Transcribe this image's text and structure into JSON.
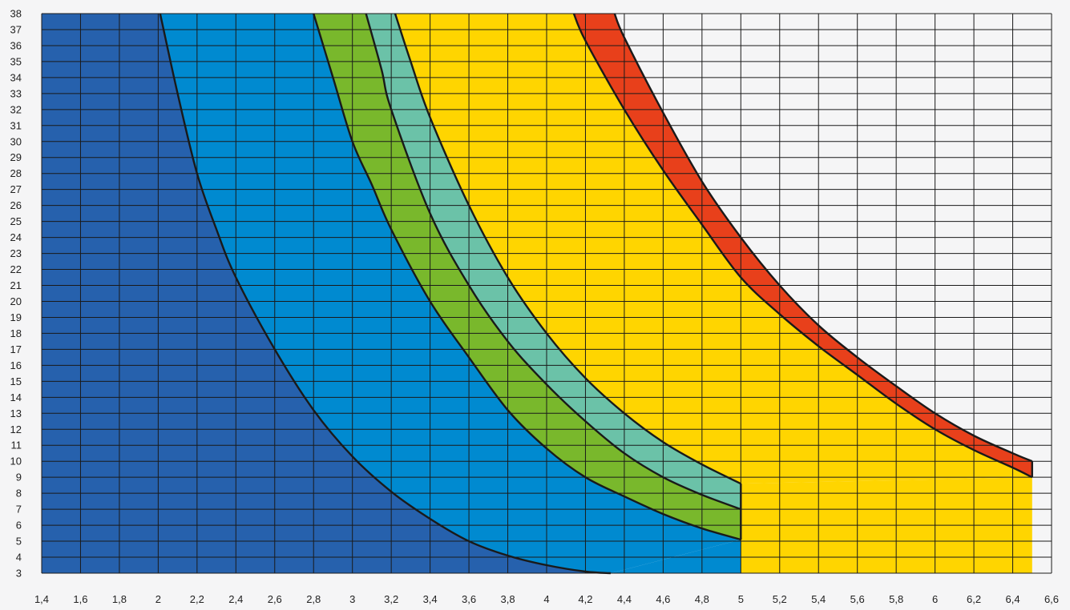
{
  "chart_data": {
    "type": "area",
    "title": "",
    "xlabel": "",
    "ylabel": "",
    "xlim": [
      1.4,
      6.6
    ],
    "ylim": [
      3,
      38
    ],
    "x_ticks": [
      1.4,
      1.6,
      1.8,
      2,
      2.2,
      2.4,
      2.6,
      2.8,
      3,
      3.2,
      3.4,
      3.6,
      3.8,
      4,
      4.2,
      4.4,
      4.6,
      4.8,
      5,
      5.2,
      5.4,
      5.6,
      5.8,
      6,
      6.2,
      6.4,
      6.6
    ],
    "x_tick_labels": [
      "1,4",
      "1,6",
      "1,8",
      "2",
      "2,2",
      "2,4",
      "2,6",
      "2,8",
      "3",
      "3,2",
      "3,4",
      "3,6",
      "3,8",
      "4",
      "4,2",
      "4,4",
      "4,6",
      "4,8",
      "5",
      "5,2",
      "5,4",
      "5,6",
      "5,8",
      "6",
      "6,2",
      "6,4",
      "6,6"
    ],
    "y_ticks": [
      3,
      4,
      5,
      6,
      7,
      8,
      9,
      10,
      11,
      12,
      13,
      14,
      15,
      16,
      17,
      18,
      19,
      20,
      21,
      22,
      23,
      24,
      25,
      26,
      27,
      28,
      29,
      30,
      31,
      32,
      33,
      34,
      35,
      36,
      37,
      38
    ],
    "grid": true,
    "legend": "none",
    "boundaries": [
      {
        "id": "c1",
        "points": [
          [
            2.01,
            38
          ],
          [
            2.1,
            33
          ],
          [
            2.2,
            28
          ],
          [
            2.3,
            24.5
          ],
          [
            2.4,
            21.5
          ],
          [
            2.6,
            17
          ],
          [
            2.8,
            13.2
          ],
          [
            3.0,
            10.3
          ],
          [
            3.2,
            8.1
          ],
          [
            3.4,
            6.4
          ],
          [
            3.6,
            5.0
          ],
          [
            3.8,
            4.1
          ],
          [
            4.0,
            3.5
          ],
          [
            4.2,
            3.1
          ],
          [
            4.33,
            3.0
          ]
        ]
      },
      {
        "id": "c2",
        "points": [
          [
            2.8,
            38
          ],
          [
            2.9,
            34
          ],
          [
            3.0,
            30
          ],
          [
            3.1,
            27.3
          ],
          [
            3.2,
            24.5
          ],
          [
            3.4,
            20
          ],
          [
            3.6,
            16.5
          ],
          [
            3.8,
            13.2
          ],
          [
            4.0,
            10.8
          ],
          [
            4.2,
            9.0
          ],
          [
            4.4,
            7.8
          ],
          [
            4.6,
            6.7
          ],
          [
            4.8,
            5.8
          ],
          [
            5.0,
            5.1
          ]
        ]
      },
      {
        "id": "c3",
        "points": [
          [
            3.07,
            38
          ],
          [
            3.15,
            34.5
          ],
          [
            3.2,
            32
          ],
          [
            3.4,
            25.5
          ],
          [
            3.6,
            21
          ],
          [
            3.8,
            17.5
          ],
          [
            4.0,
            14.8
          ],
          [
            4.2,
            12.5
          ],
          [
            4.4,
            10.5
          ],
          [
            4.6,
            9.0
          ],
          [
            4.8,
            7.9
          ],
          [
            5.0,
            7.0
          ]
        ]
      },
      {
        "id": "c4",
        "points": [
          [
            3.22,
            38
          ],
          [
            3.3,
            35
          ],
          [
            3.4,
            31.5
          ],
          [
            3.6,
            26
          ],
          [
            3.8,
            21.5
          ],
          [
            4.0,
            18
          ],
          [
            4.2,
            15.2
          ],
          [
            4.4,
            13
          ],
          [
            4.6,
            11.2
          ],
          [
            4.8,
            9.8
          ],
          [
            5.0,
            8.6
          ]
        ]
      },
      {
        "id": "c5",
        "points": [
          [
            4.14,
            38
          ],
          [
            4.2,
            36.3
          ],
          [
            4.4,
            32
          ],
          [
            4.6,
            28.2
          ],
          [
            4.8,
            24.8
          ],
          [
            5.0,
            21.5
          ],
          [
            5.2,
            19.2
          ],
          [
            5.4,
            17.2
          ],
          [
            5.6,
            15.4
          ],
          [
            5.8,
            13.6
          ],
          [
            6.0,
            12.0
          ],
          [
            6.2,
            10.7
          ],
          [
            6.4,
            9.6
          ],
          [
            6.5,
            9.0
          ]
        ]
      },
      {
        "id": "c6",
        "points": [
          [
            4.35,
            38
          ],
          [
            4.4,
            36.5
          ],
          [
            4.6,
            31.8
          ],
          [
            4.8,
            27.5
          ],
          [
            5.0,
            24
          ],
          [
            5.2,
            21
          ],
          [
            5.4,
            18.5
          ],
          [
            5.6,
            16.5
          ],
          [
            5.8,
            14.7
          ],
          [
            6.0,
            13.0
          ],
          [
            6.2,
            11.6
          ],
          [
            6.4,
            10.5
          ],
          [
            6.5,
            10.0
          ]
        ]
      }
    ],
    "regions": [
      {
        "id": "zone-1",
        "color": "#2661ad",
        "upper": "top",
        "upper_x": [
          1.4,
          2.01
        ],
        "lower": "c1"
      },
      {
        "id": "zone-2",
        "color": "#008ad0",
        "between": [
          "c1",
          "c2"
        ]
      },
      {
        "id": "zone-3",
        "color": "#79b82c",
        "between": [
          "c2",
          "c3"
        ]
      },
      {
        "id": "zone-4",
        "color": "#6bc2a8",
        "between": [
          "c3",
          "c4"
        ]
      },
      {
        "id": "zone-5",
        "color": "#ffd500",
        "between": [
          "c4",
          "c5"
        ]
      },
      {
        "id": "zone-6",
        "color": "#e8401b",
        "between": [
          "c5",
          "c6"
        ]
      }
    ],
    "colors": {
      "background": "#f5f5f6",
      "grid": "#1a1a1a",
      "curve": "#1a1a1a"
    }
  }
}
